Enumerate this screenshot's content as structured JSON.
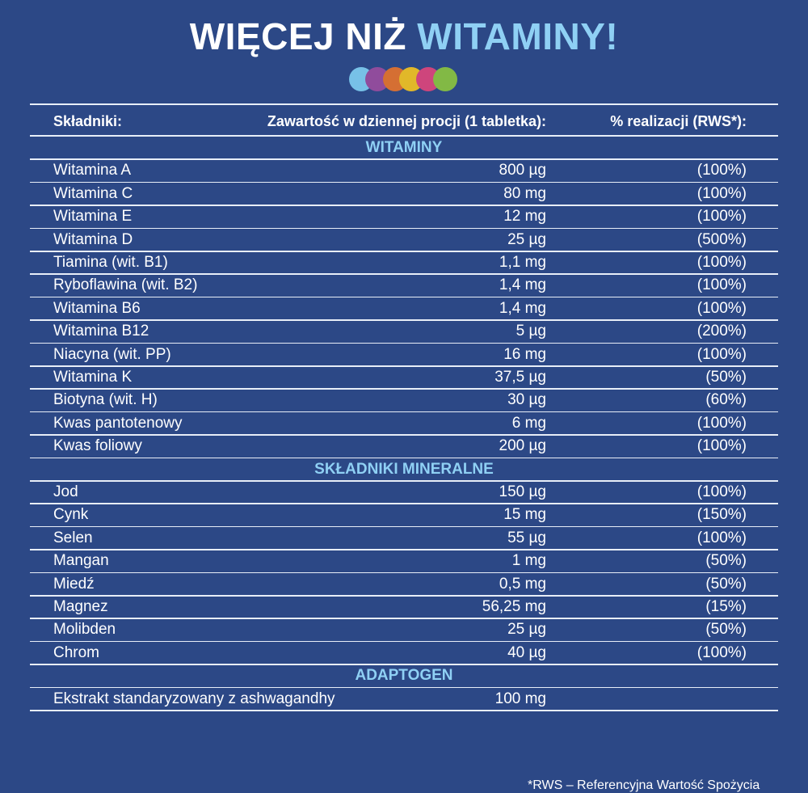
{
  "header": {
    "title_main": "WIĘCEJ NIŻ",
    "title_accent": "WITAMINY!"
  },
  "table": {
    "columns": [
      "Składniki:",
      "Zawartość w dziennej procji (1 tabletka):",
      "% realizacji (RWS*):"
    ],
    "sections": [
      {
        "title": "WITAMINY",
        "rows": [
          [
            "Witamina A",
            "800 µg",
            "(100%)"
          ],
          [
            "Witamina C",
            "80 mg",
            "(100%)"
          ],
          [
            "Witamina E",
            "12 mg",
            "(100%)"
          ],
          [
            "Witamina D",
            "25 µg",
            "(500%)"
          ],
          [
            "Tiamina (wit. B1)",
            "1,1 mg",
            "(100%)"
          ],
          [
            "Ryboflawina (wit. B2)",
            "1,4 mg",
            "(100%)"
          ],
          [
            "Witamina B6",
            "1,4 mg",
            "(100%)"
          ],
          [
            "Witamina B12",
            "5 µg",
            "(200%)"
          ],
          [
            "Niacyna (wit. PP)",
            "16 mg",
            "(100%)"
          ],
          [
            "Witamina K",
            "37,5 µg",
            "(50%)"
          ],
          [
            "Biotyna (wit. H)",
            "30 µg",
            "(60%)"
          ],
          [
            "Kwas pantotenowy",
            "6 mg",
            "(100%)"
          ],
          [
            "Kwas foliowy",
            "200 µg",
            "(100%)"
          ]
        ]
      },
      {
        "title": "SKŁADNIKI  MINERALNE",
        "rows": [
          [
            "Jod",
            "150 µg",
            "(100%)"
          ],
          [
            "Cynk",
            "15 mg",
            "(150%)"
          ],
          [
            "Selen",
            "55 µg",
            "(100%)"
          ],
          [
            "Mangan",
            "1 mg",
            "(50%)"
          ],
          [
            "Miedź",
            "0,5 mg",
            "(50%)"
          ],
          [
            "Magnez",
            "56,25 mg",
            "(15%)"
          ],
          [
            "Molibden",
            "25 µg",
            "(50%)"
          ],
          [
            "Chrom",
            "40 µg",
            "(100%)"
          ]
        ]
      },
      {
        "title": "ADAPTOGEN",
        "rows": [
          [
            "Ekstrakt standaryzowany z ashwagandhy",
            "100 mg"
          ]
        ]
      }
    ]
  },
  "footnote": "*RWS – Referencyjna Wartość Spożycia"
}
